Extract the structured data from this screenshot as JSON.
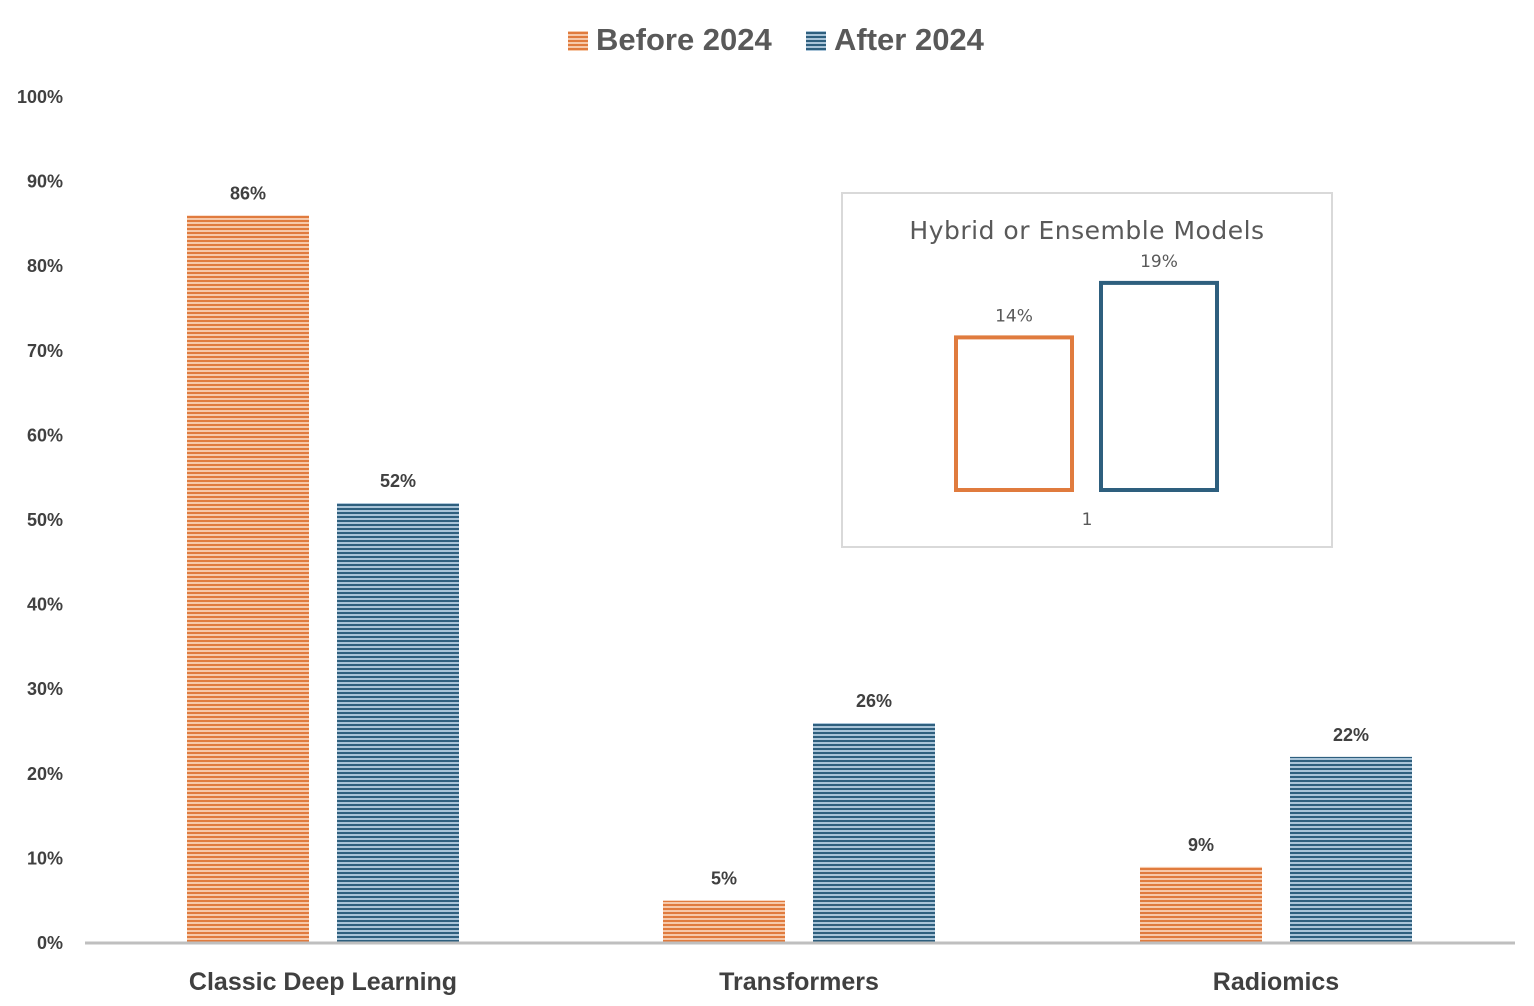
{
  "chart_data": [
    {
      "type": "bar",
      "categories": [
        "Classic Deep Learning",
        "Transformers",
        "Radiomics"
      ],
      "series": [
        {
          "name": "Before 2024",
          "values": [
            86,
            5,
            9
          ],
          "labels": [
            "86%",
            "5%",
            "9%"
          ]
        },
        {
          "name": "After 2024",
          "values": [
            52,
            26,
            22
          ],
          "labels": [
            "52%",
            "26%",
            "22%"
          ]
        }
      ],
      "ylim": [
        0,
        100
      ],
      "yticks": [
        "0%",
        "10%",
        "20%",
        "30%",
        "40%",
        "50%",
        "60%",
        "70%",
        "80%",
        "90%",
        "100%"
      ],
      "legend": "top-center",
      "grid": false,
      "colors": {
        "Before 2024": "#E07B3E",
        "After 2024": "#2E5F7E"
      },
      "fill_style": "horizontal-stripes"
    },
    {
      "type": "bar",
      "title": "Hybrid or Ensemble Models",
      "categories": [
        "1"
      ],
      "series": [
        {
          "name": "Before 2024",
          "values": [
            14
          ],
          "labels": [
            "14%"
          ]
        },
        {
          "name": "After 2024",
          "values": [
            19
          ],
          "labels": [
            "19%"
          ]
        }
      ],
      "fill_style": "outline"
    }
  ]
}
